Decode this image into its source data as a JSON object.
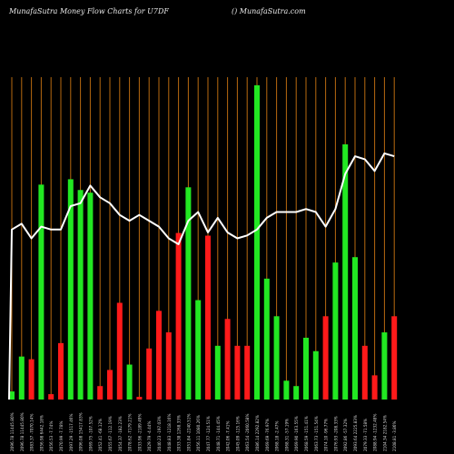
{
  "header": {
    "left_text": "MunafaSutra  Money Flow  Charts for U7DF",
    "right_text": "() MunafaSutra.com"
  },
  "colors": {
    "background": "#000000",
    "gridline": "#b86a10",
    "buy_bar": "#22e822",
    "sell_bar": "#ff1a1a",
    "price_line": "#ffffff",
    "label_text": "#d8d8d8"
  },
  "chart_data": {
    "type": "bar",
    "bars": [
      {
        "label": "2096.78  11445.80%",
        "value": 3,
        "color": "green"
      },
      {
        "label": "2096.78  11445.80%",
        "value": 16,
        "color": "green"
      },
      {
        "label": "2083.37  -7070.14%",
        "value": 15,
        "color": "red"
      },
      {
        "label": "2056.98  6442.18%",
        "value": 80,
        "color": "green"
      },
      {
        "label": "2056.53  -7.74%",
        "value": 2,
        "color": "red"
      },
      {
        "label": "2070.99  -7.78%",
        "value": 21,
        "color": "red"
      },
      {
        "label": "2097.29  -1517.46%",
        "value": 82,
        "color": "green"
      },
      {
        "label": "2096.08  15417.83%",
        "value": 78,
        "color": "green"
      },
      {
        "label": "2069.75  -107.52%",
        "value": 77,
        "color": "green"
      },
      {
        "label": "2052.41  -68.12%",
        "value": 5,
        "color": "red"
      },
      {
        "label": "2055.67  -112.19%",
        "value": 11,
        "color": "red"
      },
      {
        "label": "2054.37  -182.23%",
        "value": 36,
        "color": "red"
      },
      {
        "label": "2078.62  -7179.21%",
        "value": 13,
        "color": "green"
      },
      {
        "label": "2033.96  -2189.49%",
        "value": 1,
        "color": "red"
      },
      {
        "label": "2029.79  -4.44%",
        "value": 19,
        "color": "red"
      },
      {
        "label": "2040.23  -197.03%",
        "value": 33,
        "color": "red"
      },
      {
        "label": "2048.83  -1218.16%",
        "value": 25,
        "color": "red"
      },
      {
        "label": "2033.38  1268.33%",
        "value": 62,
        "color": "red"
      },
      {
        "label": "2051.84  -2240.51%",
        "value": 79,
        "color": "green"
      },
      {
        "label": "2056.11  1080.26%",
        "value": 37,
        "color": "green"
      },
      {
        "label": "2047.77  -124.51%",
        "value": 61,
        "color": "red"
      },
      {
        "label": "2048.71  -144.45%",
        "value": 20,
        "color": "green"
      },
      {
        "label": "2042.06  -7.41%",
        "value": 30,
        "color": "red"
      },
      {
        "label": "2045.09  -125.16%",
        "value": 20,
        "color": "red"
      },
      {
        "label": "2063.54  -2060.58%",
        "value": 20,
        "color": "red"
      },
      {
        "label": "2086.14  2292.82%",
        "value": 117,
        "color": "green"
      },
      {
        "label": "2069.69  -76.97%",
        "value": 45,
        "color": "green"
      },
      {
        "label": "2068.18  -2.47%",
        "value": 31,
        "color": "green"
      },
      {
        "label": "2068.31  -57.19%",
        "value": 7,
        "color": "green"
      },
      {
        "label": "2069.90  -163.55%",
        "value": 5,
        "color": "green"
      },
      {
        "label": "2068.59  -151.41%",
        "value": 23,
        "color": "green"
      },
      {
        "label": "2063.73  -151.54%",
        "value": 18,
        "color": "green"
      },
      {
        "label": "2074.10  -96.77%",
        "value": 31,
        "color": "red"
      },
      {
        "label": "2076.93  -208.33%",
        "value": 51,
        "color": "green"
      },
      {
        "label": "2092.86  -57.32%",
        "value": 95,
        "color": "green"
      },
      {
        "label": "2093.64  2225.83%",
        "value": 53,
        "color": "green"
      },
      {
        "label": "2079.33  -71.58%",
        "value": 20,
        "color": "red"
      },
      {
        "label": "2088.94  -1232.48%",
        "value": 9,
        "color": "red"
      },
      {
        "label": "2104.34  2182.54%",
        "value": 25,
        "color": "green"
      },
      {
        "label": "2108.81  -3.86%",
        "value": 31,
        "color": "red"
      }
    ],
    "price_line": [
      208,
      210,
      205,
      209,
      208,
      208,
      216,
      217,
      223,
      219,
      217,
      213,
      211,
      213,
      211,
      209,
      205,
      203,
      211,
      214,
      207,
      212,
      207,
      205,
      206,
      208,
      212,
      214,
      214,
      214,
      215,
      214,
      209,
      215,
      227,
      233,
      232,
      228,
      234,
      233
    ],
    "grid": true
  }
}
